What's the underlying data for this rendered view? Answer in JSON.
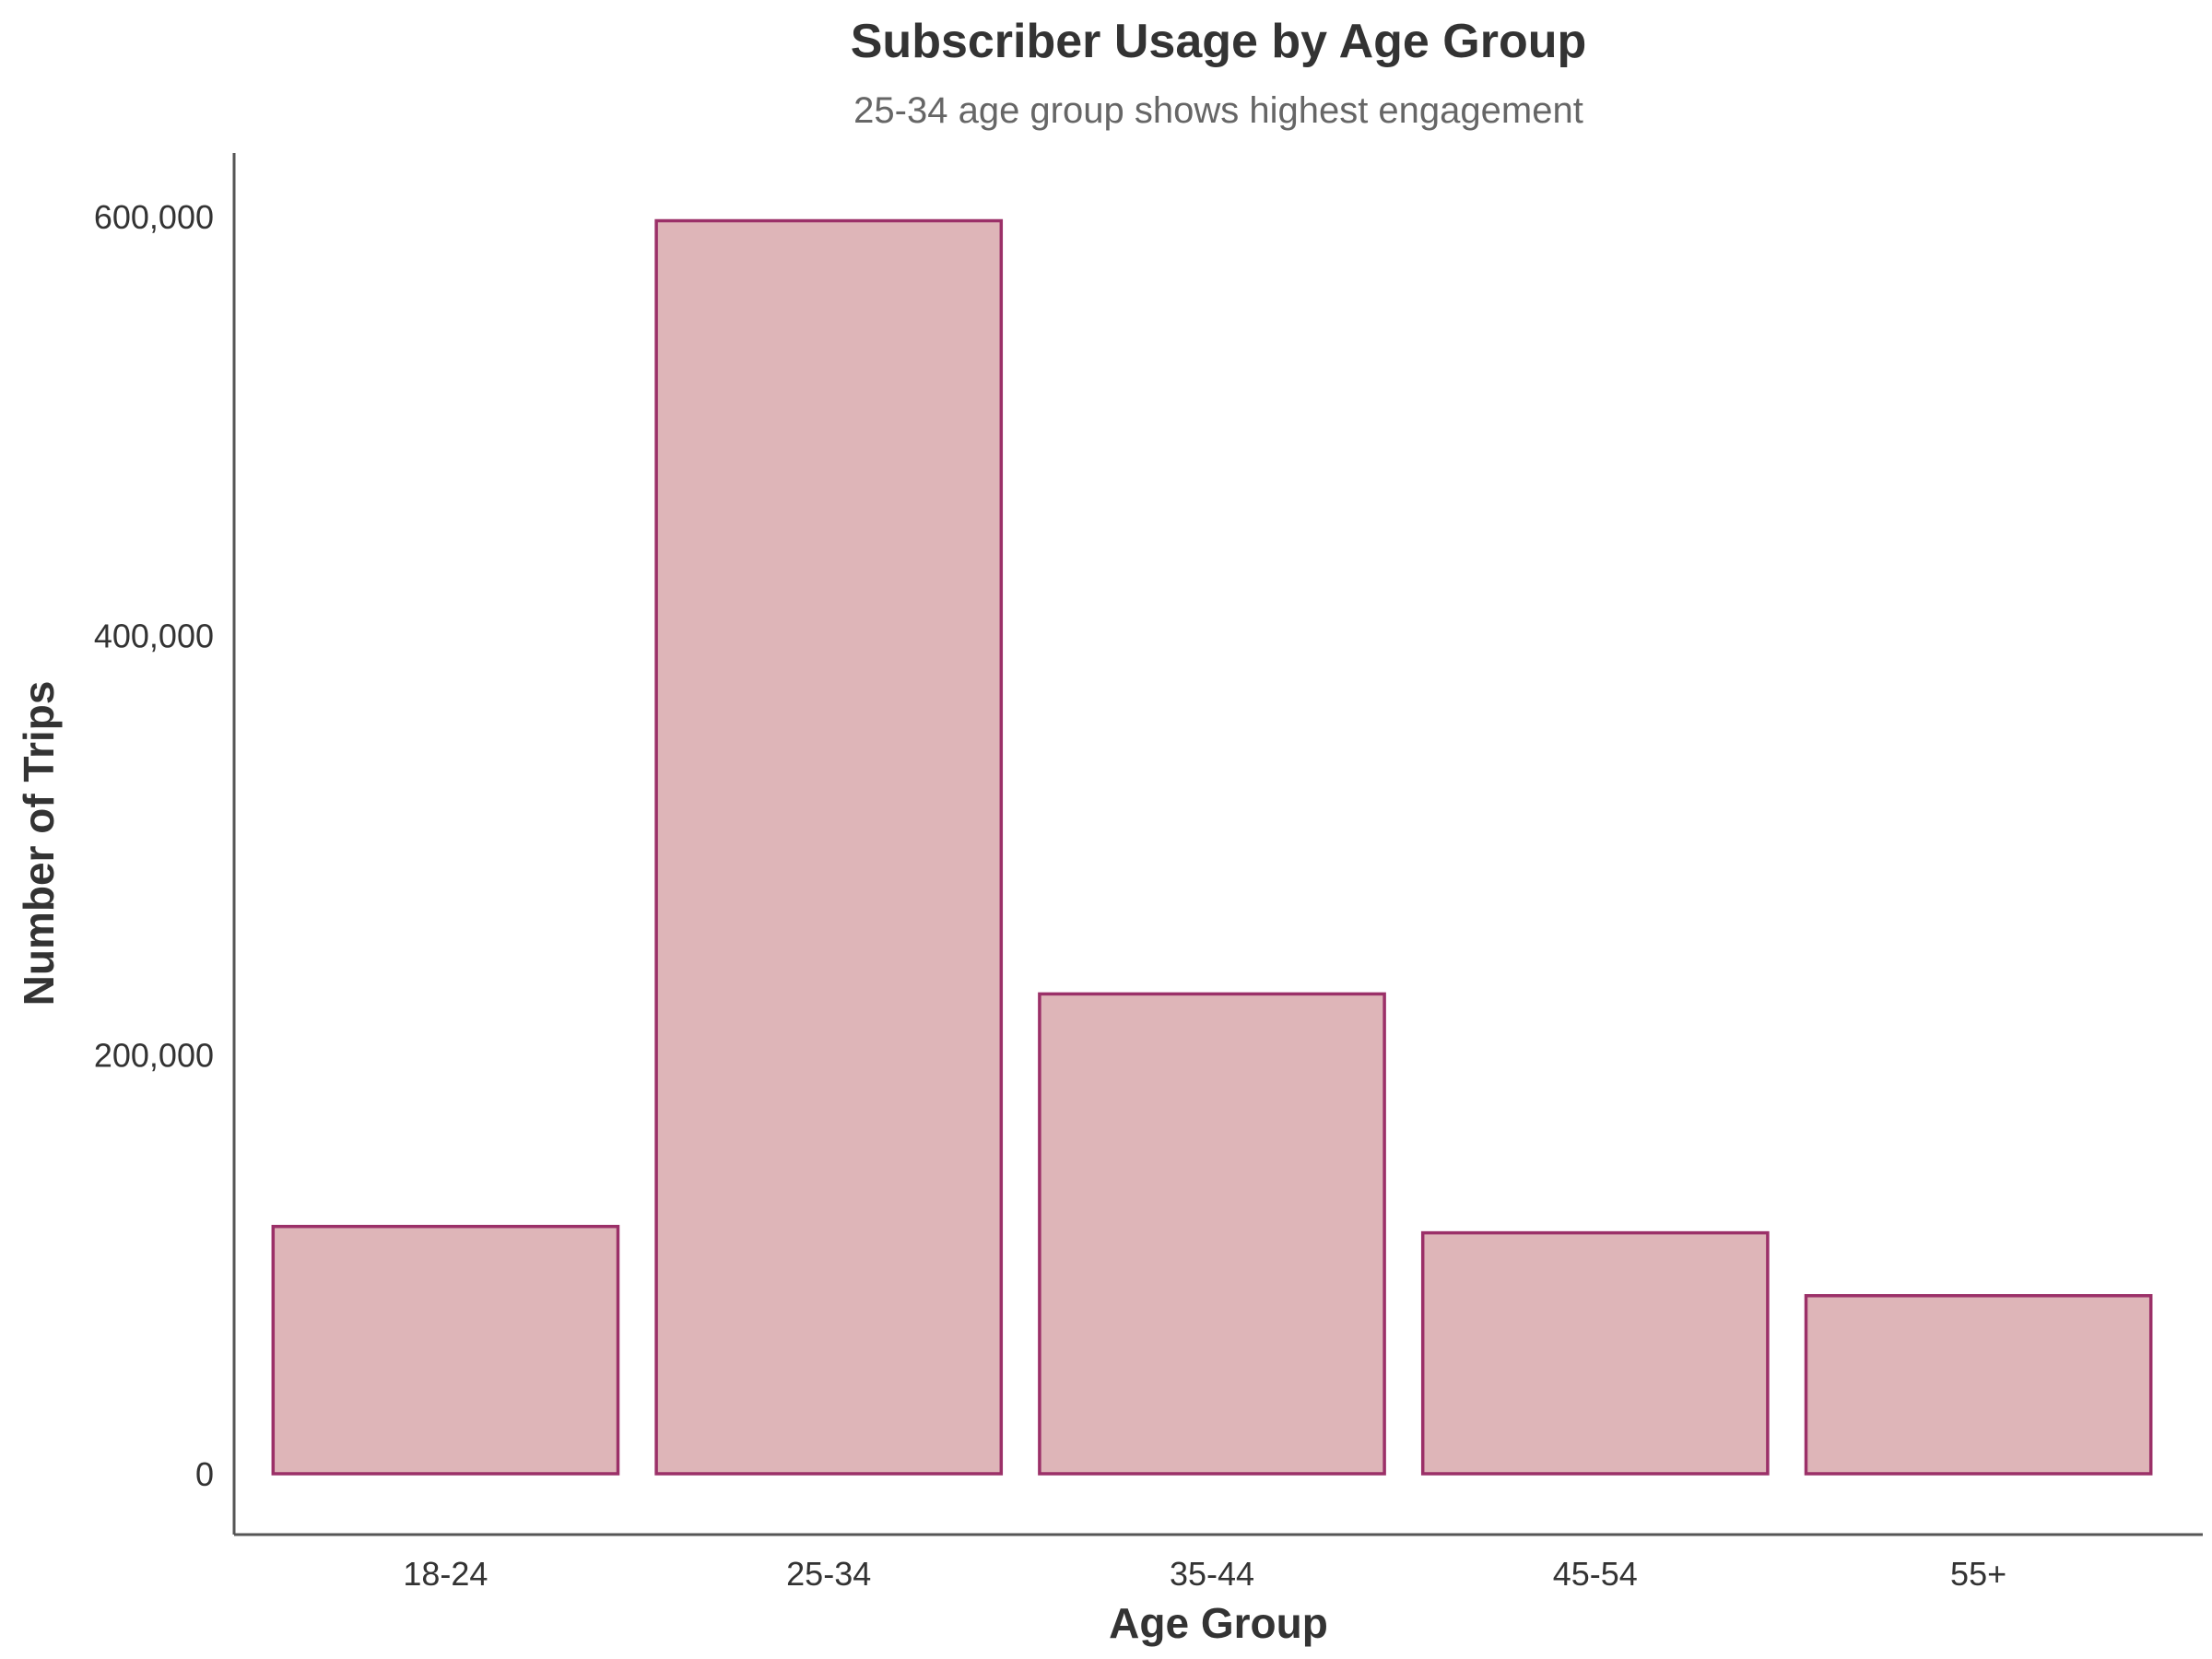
{
  "chart_data": {
    "type": "bar",
    "title": "Subscriber Usage by Age Group",
    "subtitle": "25-34 age group shows highest engagement",
    "xlabel": "Age Group",
    "ylabel": "Number of Trips",
    "categories": [
      "18-24",
      "25-34",
      "35-44",
      "45-54",
      "55+"
    ],
    "values": [
      118000,
      598000,
      229000,
      115000,
      85000
    ],
    "ylim": [
      -30000,
      630000
    ],
    "yticks": [
      0,
      200000,
      400000,
      600000
    ],
    "ytick_labels": [
      "0",
      "200,000",
      "400,000",
      "600,000"
    ],
    "grid": false,
    "legend": "none",
    "colors": {
      "bar_fill": "#deb5b8",
      "bar_stroke": "#9b3068",
      "axis": "#555555",
      "text": "#333333",
      "subtitle": "#666666"
    }
  }
}
